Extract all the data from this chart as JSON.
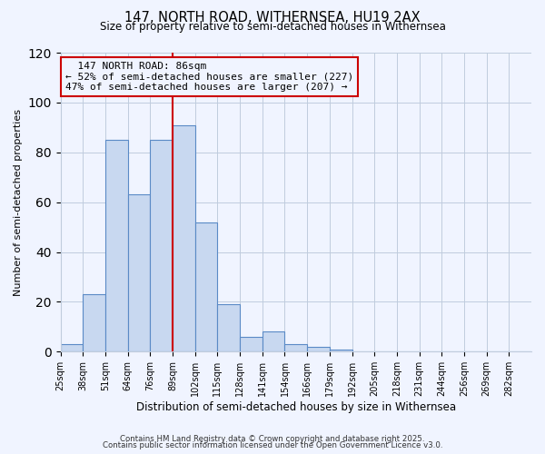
{
  "title": "147, NORTH ROAD, WITHERNSEA, HU19 2AX",
  "subtitle": "Size of property relative to semi-detached houses in Withernsea",
  "xlabel": "Distribution of semi-detached houses by size in Withernsea",
  "ylabel": "Number of semi-detached properties",
  "bin_labels": [
    "25sqm",
    "38sqm",
    "51sqm",
    "64sqm",
    "76sqm",
    "89sqm",
    "102sqm",
    "115sqm",
    "128sqm",
    "141sqm",
    "154sqm",
    "166sqm",
    "179sqm",
    "192sqm",
    "205sqm",
    "218sqm",
    "231sqm",
    "244sqm",
    "256sqm",
    "269sqm",
    "282sqm"
  ],
  "bar_heights": [
    3,
    23,
    85,
    63,
    85,
    91,
    52,
    19,
    6,
    8,
    3,
    2,
    1,
    0,
    0,
    0,
    0,
    0,
    0,
    0,
    0
  ],
  "bar_color": "#c8d8f0",
  "bar_edge_color": "#5a8ac6",
  "vline_x": 5,
  "vline_color": "#cc0000",
  "annotation_title": "147 NORTH ROAD: 86sqm",
  "annotation_line1": "← 52% of semi-detached houses are smaller (227)",
  "annotation_line2": "47% of semi-detached houses are larger (207) →",
  "annotation_box_edge": "#cc0000",
  "ylim": [
    0,
    120
  ],
  "footer1": "Contains HM Land Registry data © Crown copyright and database right 2025.",
  "footer2": "Contains public sector information licensed under the Open Government Licence v3.0.",
  "background_color": "#f0f4ff",
  "grid_color": "#c0ccdd"
}
